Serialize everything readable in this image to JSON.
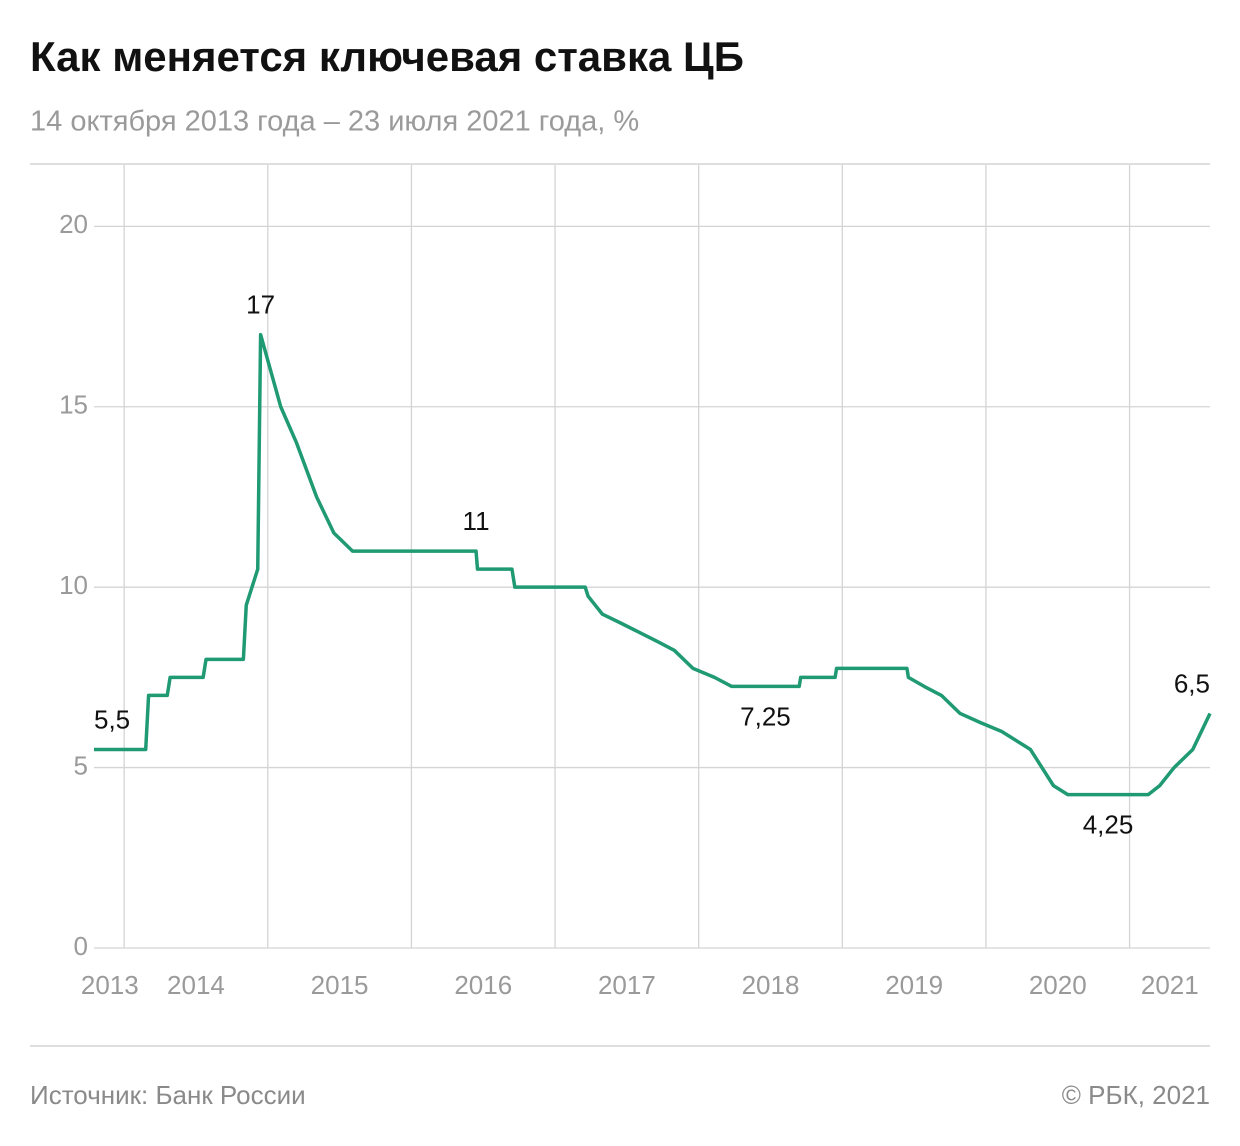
{
  "chart_data": {
    "type": "line",
    "title": "Как меняется ключевая ставка ЦБ",
    "subtitle": "14 октября 2013 года – 23 июля 2021 года, %",
    "source": "Источник: Банк России",
    "credit": "© РБК, 2021",
    "x": [
      2013.79,
      2014.15,
      2014.17,
      2014.3,
      2014.32,
      2014.55,
      2014.57,
      2014.83,
      2014.85,
      2014.93,
      2014.95,
      2015.09,
      2015.2,
      2015.34,
      2015.46,
      2015.59,
      2016.45,
      2016.46,
      2016.7,
      2016.72,
      2017.21,
      2017.23,
      2017.33,
      2017.46,
      2017.71,
      2017.83,
      2017.96,
      2018.11,
      2018.23,
      2018.7,
      2018.71,
      2018.95,
      2018.96,
      2019.45,
      2019.46,
      2019.57,
      2019.69,
      2019.82,
      2019.96,
      2020.11,
      2020.31,
      2020.47,
      2020.57,
      2021.13,
      2021.21,
      2021.31,
      2021.44,
      2021.56
    ],
    "series": [
      {
        "name": "Ключевая ставка",
        "color": "#1f9a72",
        "values": [
          5.5,
          5.5,
          7,
          7,
          7.5,
          7.5,
          8,
          8,
          9.5,
          10.5,
          17,
          15,
          14,
          12.5,
          11.5,
          11,
          11,
          10.5,
          10.5,
          10,
          10,
          9.75,
          9.25,
          9,
          8.5,
          8.25,
          7.75,
          7.5,
          7.25,
          7.25,
          7.5,
          7.5,
          7.75,
          7.75,
          7.5,
          7.25,
          7,
          6.5,
          6.25,
          6,
          5.5,
          4.5,
          4.25,
          4.25,
          4.5,
          5,
          5.5,
          6.5
        ],
        "value_labels": [
          "5,5",
          null,
          null,
          null,
          null,
          null,
          null,
          null,
          null,
          null,
          "17",
          null,
          null,
          null,
          null,
          null,
          "11",
          null,
          null,
          null,
          null,
          null,
          null,
          null,
          null,
          null,
          null,
          null,
          "7,25",
          null,
          null,
          null,
          null,
          null,
          null,
          null,
          null,
          null,
          null,
          null,
          null,
          null,
          "4,25",
          null,
          null,
          null,
          null,
          "6,5"
        ]
      }
    ],
    "xlim": [
      2013.79,
      2021.56
    ],
    "xgrid": [
      2014,
      2015,
      2016,
      2017,
      2018,
      2019,
      2020,
      2021
    ],
    "xticks": [
      {
        "value": 2013.9,
        "label": "2013"
      },
      {
        "value": 2014.5,
        "label": "2014"
      },
      {
        "value": 2015.5,
        "label": "2015"
      },
      {
        "value": 2016.5,
        "label": "2016"
      },
      {
        "value": 2017.5,
        "label": "2017"
      },
      {
        "value": 2018.5,
        "label": "2018"
      },
      {
        "value": 2019.5,
        "label": "2019"
      },
      {
        "value": 2020.5,
        "label": "2020"
      },
      {
        "value": 2021.28,
        "label": "2021"
      }
    ],
    "ylim": [
      0,
      21.7
    ],
    "yticks": [
      0,
      5,
      10,
      15,
      20
    ],
    "grid": true
  }
}
